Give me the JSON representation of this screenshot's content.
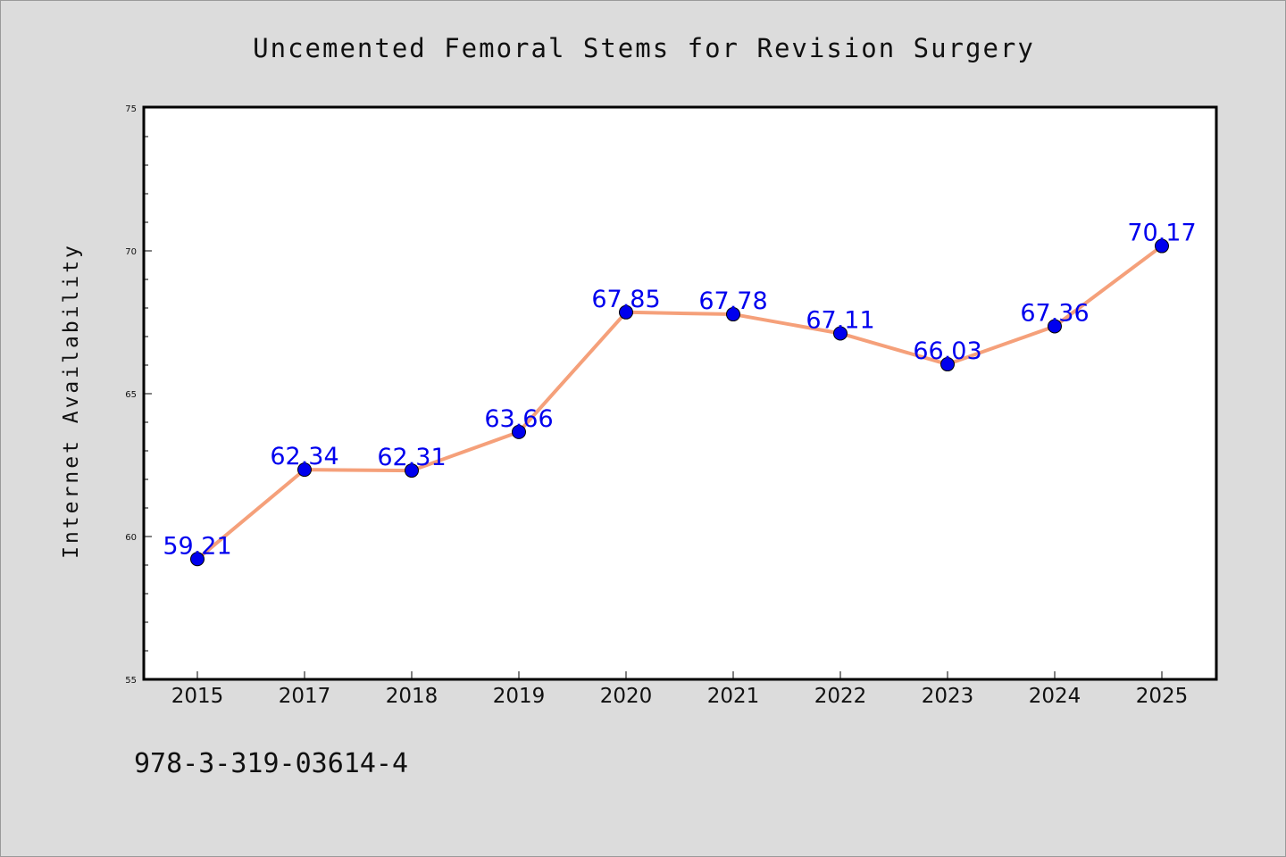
{
  "chart_data": {
    "type": "line",
    "title": "Uncemented Femoral Stems for Revision Surgery",
    "xlabel": "",
    "ylabel": "Internet Availability",
    "categories": [
      "2015",
      "2017",
      "2018",
      "2019",
      "2020",
      "2021",
      "2022",
      "2023",
      "2024",
      "2025"
    ],
    "series": [
      {
        "values": [
          59.21,
          62.34,
          62.31,
          63.66,
          67.85,
          67.78,
          67.11,
          66.03,
          67.36,
          70.17
        ],
        "line_color": "#f5a07a",
        "marker_color": "#0000ee"
      }
    ],
    "data_labels": [
      "59.21",
      "62.34",
      "62.31",
      "63.66",
      "67.85",
      "67.78",
      "67.11",
      "66.03",
      "67.36",
      "70.17"
    ],
    "ylim": [
      55,
      75
    ],
    "yticks": [
      55,
      60,
      65,
      70,
      75
    ],
    "ytick_labels": [
      "55",
      "60",
      "65",
      "70",
      "75"
    ],
    "minor_ytick_step": 1,
    "grid": false,
    "legend": "none",
    "label_color": "#0000ee"
  },
  "footer": {
    "isbn": "978-3-319-03614-4"
  },
  "colors": {
    "background": "#dcdcdc",
    "plot_background": "#ffffff",
    "axis": "#000000"
  }
}
